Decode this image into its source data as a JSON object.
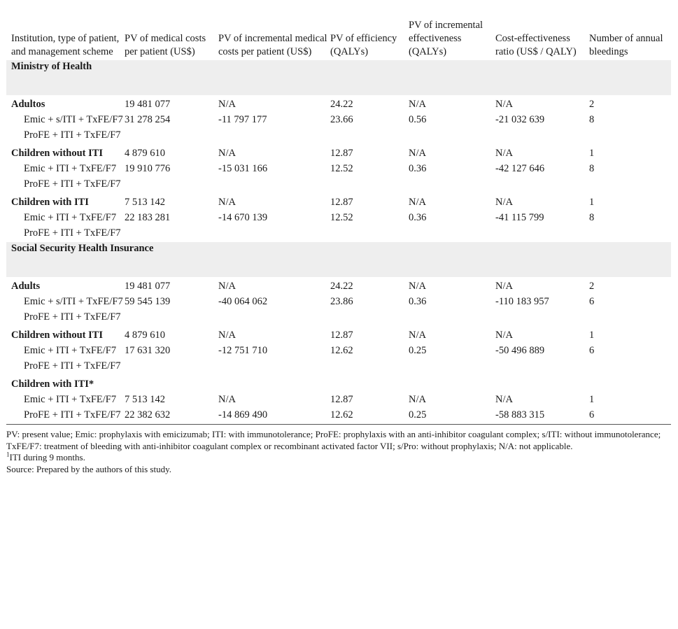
{
  "headers": [
    "Institution, type of patient, and management scheme",
    "PV of medical costs per patient (US$)",
    "PV of incremental medical costs per patient (US$)",
    "PV of efficiency (QALYs)",
    "PV of incremental effectiveness (QALYs)",
    "Cost-effectiveness ratio (US$ / QALY)",
    "Number of annual bleedings"
  ],
  "sections": [
    {
      "title": "Ministry of Health",
      "groups": [
        {
          "label": "Adultos",
          "group_values": [
            "19 481 077",
            "N/A",
            "24.22",
            "N/A",
            "N/A",
            "2"
          ],
          "rows": [
            {
              "label": "Emic + s/ITI + TxFE/F7",
              "values": [
                "31 278 254",
                "-11 797 177",
                "23.66",
                "0.56",
                "-21 032 639",
                "8"
              ]
            },
            {
              "label": "ProFE + ITI + TxFE/F7",
              "values": [
                "",
                "",
                "",
                "",
                "",
                ""
              ]
            }
          ]
        },
        {
          "label": "Children without ITI",
          "group_values": [
            "4 879 610",
            "N/A",
            "12.87",
            "N/A",
            "N/A",
            "1"
          ],
          "rows": [
            {
              "label": "Emic + ITI + TxFE/F7",
              "values": [
                "19 910 776",
                "-15 031 166",
                "12.52",
                "0.36",
                "-42 127 646",
                "8"
              ]
            },
            {
              "label": "ProFE + ITI + TxFE/F7",
              "values": [
                "",
                "",
                "",
                "",
                "",
                ""
              ]
            }
          ]
        },
        {
          "label": "Children with ITI",
          "group_values": [
            "7 513 142",
            "N/A",
            "12.87",
            "N/A",
            "N/A",
            "1"
          ],
          "rows": [
            {
              "label": "Emic + ITI + TxFE/F7",
              "values": [
                "22 183 281",
                "-14 670 139",
                "12.52",
                "0.36",
                "-41 115 799",
                "8"
              ]
            },
            {
              "label": "ProFE + ITI + TxFE/F7",
              "values": [
                "",
                "",
                "",
                "",
                "",
                ""
              ]
            }
          ]
        }
      ]
    },
    {
      "title": "Social Security Health Insurance",
      "groups": [
        {
          "label": "Adults",
          "group_values": [
            "19 481 077",
            "N/A",
            "24.22",
            "N/A",
            "N/A",
            "2"
          ],
          "rows": [
            {
              "label": "Emic + s/ITI + TxFE/F7",
              "values": [
                "59 545 139",
                "-40 064 062",
                "23.86",
                "0.36",
                "-110 183 957",
                "6"
              ]
            },
            {
              "label": "ProFE + ITI + TxFE/F7",
              "values": [
                "",
                "",
                "",
                "",
                "",
                ""
              ]
            }
          ]
        },
        {
          "label": "Children without ITI",
          "group_values": [
            "4 879 610",
            "N/A",
            "12.87",
            "N/A",
            "N/A",
            "1"
          ],
          "rows": [
            {
              "label": "Emic + ITI + TxFE/F7",
              "values": [
                "17 631 320",
                "-12 751 710",
                "12.62",
                "0.25",
                "-50 496 889",
                "6"
              ]
            },
            {
              "label": "ProFE + ITI + TxFE/F7",
              "values": [
                "",
                "",
                "",
                "",
                "",
                ""
              ]
            }
          ]
        },
        {
          "label": "Children with ITI*",
          "group_values": [
            "",
            "",
            "",
            "",
            "",
            ""
          ],
          "rows": [
            {
              "label": "Emic + ITI + TxFE/F7",
              "values": [
                "7 513 142",
                "N/A",
                "12.87",
                "N/A",
                "N/A",
                "1"
              ]
            },
            {
              "label": "ProFE + ITI + TxFE/F7",
              "values": [
                "22 382 632",
                "-14 869 490",
                "12.62",
                "0.25",
                "-58 883 315",
                "6"
              ]
            }
          ]
        }
      ]
    }
  ],
  "notes": {
    "abbreviations": "PV: present value; Emic: prophylaxis with emicizumab; ITI: with immunotolerance; ProFE: prophylaxis with an anti-inhibitor coagulant complex; s/ITI: without immunotolerance; TxFE/F7: treatment of bleeding with anti-inhibitor coagulant complex or recombinant activated factor VII; s/Pro: without prophylaxis; N/A: not applicable.",
    "footnote_marker": "1",
    "footnote": "ITI during 9 months.",
    "source": "Source: Prepared by the authors of this study."
  }
}
